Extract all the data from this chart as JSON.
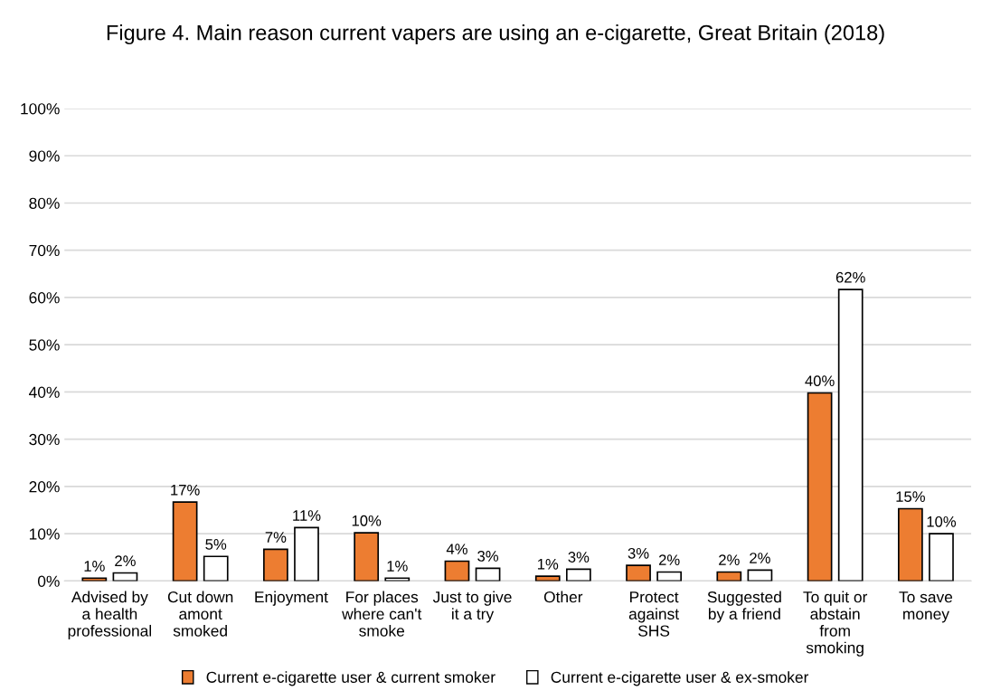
{
  "chart_data": {
    "type": "bar",
    "title": "Figure 4. Main reason current vapers are using an e-cigarette, Great Britain (2018)",
    "categories": [
      "Advised by\na health\nprofessional",
      "Cut down\namont\nsmoked",
      "Enjoyment",
      "For places\nwhere can't\nsmoke",
      "Just to give\nit a try",
      "Other",
      "Protect\nagainst\nSHS",
      "Suggested\nby a friend",
      "To quit or\nabstain\nfrom\nsmoking",
      "To save\nmoney"
    ],
    "series": [
      {
        "name": "Current e-cigarette user & current smoker",
        "color": "#ed7d31",
        "values": [
          0.6,
          16.7,
          6.7,
          10.2,
          4.2,
          1.0,
          3.3,
          1.9,
          39.8,
          15.3
        ],
        "value_labels": [
          "1%",
          "17%",
          "7%",
          "10%",
          "4%",
          "1%",
          "3%",
          "2%",
          "40%",
          "15%"
        ]
      },
      {
        "name": "Current e-cigarette user & ex-smoker",
        "color": "#ffffff",
        "values": [
          1.7,
          5.2,
          11.3,
          0.6,
          2.7,
          2.5,
          1.9,
          2.3,
          61.7,
          10.0
        ],
        "value_labels": [
          "2%",
          "5%",
          "11%",
          "1%",
          "3%",
          "3%",
          "2%",
          "2%",
          "62%",
          "10%"
        ]
      }
    ],
    "ylim": [
      0,
      100
    ],
    "yticks": [
      {
        "value": 0,
        "label": "0%"
      },
      {
        "value": 10,
        "label": "10%"
      },
      {
        "value": 20,
        "label": "20%"
      },
      {
        "value": 30,
        "label": "30%"
      },
      {
        "value": 40,
        "label": "40%"
      },
      {
        "value": 50,
        "label": "50%"
      },
      {
        "value": 60,
        "label": "60%"
      },
      {
        "value": 70,
        "label": "70%"
      },
      {
        "value": 80,
        "label": "80%"
      },
      {
        "value": 90,
        "label": "90%"
      },
      {
        "value": 100,
        "label": "100%"
      }
    ],
    "grid": "y",
    "legend": "bottom"
  }
}
